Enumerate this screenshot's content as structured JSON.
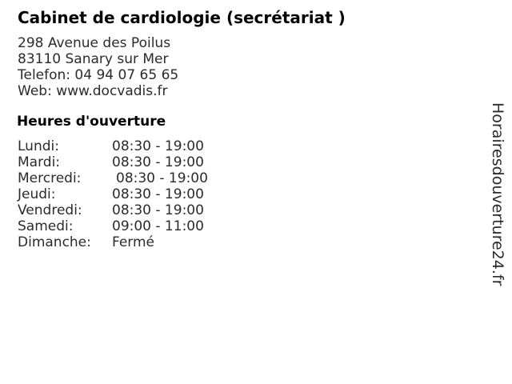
{
  "header": {
    "title": "Cabinet de cardiologie (secrétariat )"
  },
  "contact": {
    "street": "298 Avenue des Poilus",
    "city": "83110 Sanary sur Mer",
    "phone": "Telefon: 04 94 07 65 65",
    "web": "Web: www.docvadis.fr"
  },
  "hours": {
    "heading": "Heures d'ouverture",
    "rows": [
      {
        "day": "Lundi:",
        "time": "08:30 - 19:00"
      },
      {
        "day": "Mardi:",
        "time": "08:30 - 19:00"
      },
      {
        "day": "Mercredi:",
        "time": "08:30 - 19:00"
      },
      {
        "day": "Jeudi:",
        "time": "08:30 - 19:00"
      },
      {
        "day": "Vendredi:",
        "time": "08:30 - 19:00"
      },
      {
        "day": "Samedi:",
        "time": "09:00 - 11:00"
      },
      {
        "day": "Dimanche:",
        "time": "Fermé"
      }
    ]
  },
  "watermark": {
    "text": "Horairesdouverture24.fr"
  },
  "colors": {
    "background": "#ffffff",
    "body_text": "#2b2b2b",
    "heading_text": "#000000"
  }
}
